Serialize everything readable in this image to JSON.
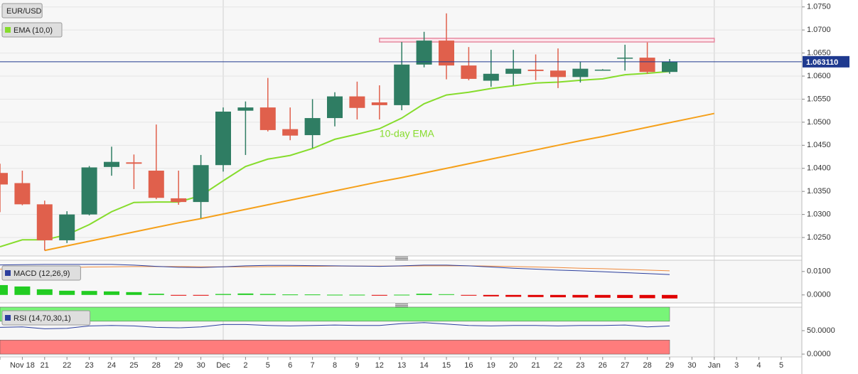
{
  "chart_data": {
    "type": "candlestick",
    "symbol": "EUR/USD",
    "categories": [
      null,
      "Nov 18",
      "21",
      "22",
      "23",
      "24",
      "25",
      "28",
      "29",
      "30",
      "Dec",
      "2",
      "5",
      "6",
      "7",
      "8",
      "9",
      "12",
      "13",
      "14",
      "15",
      "16",
      "19",
      "20",
      "21",
      "22",
      "23",
      "26",
      "27",
      "28",
      "29",
      "30",
      "Jan",
      "3",
      "4",
      "5"
    ],
    "open": [
      1.039,
      1.0368,
      1.0322,
      1.0244,
      1.03,
      1.0403,
      1.0413,
      1.0395,
      1.0335,
      1.0327,
      1.0407,
      1.0525,
      1.0532,
      1.0485,
      1.0472,
      1.0509,
      1.0556,
      1.0543,
      1.0537,
      1.0625,
      1.0677,
      1.0623,
      1.059,
      1.0605,
      1.0614,
      1.0612,
      1.0598,
      1.0614,
      1.0638,
      1.064,
      1.0609,
      null,
      null,
      null,
      null,
      null
    ],
    "high": [
      1.041,
      1.0395,
      1.033,
      1.0307,
      1.0405,
      1.0447,
      1.043,
      1.0495,
      1.0395,
      1.0429,
      1.0532,
      1.0545,
      1.0596,
      1.0532,
      1.055,
      1.0565,
      1.0588,
      1.058,
      1.0674,
      1.0696,
      1.0736,
      1.0663,
      1.0657,
      1.0657,
      1.0647,
      1.066,
      1.0631,
      1.0615,
      1.0668,
      1.0673,
      1.0637,
      null,
      null,
      null,
      null,
      null
    ],
    "low": [
      1.0305,
      1.032,
      1.0222,
      1.0238,
      1.0298,
      1.0384,
      1.0355,
      1.0333,
      1.0321,
      1.0292,
      1.0393,
      1.0429,
      1.048,
      1.0461,
      1.0444,
      1.0491,
      1.0506,
      1.0506,
      1.0526,
      1.0619,
      1.0593,
      1.0591,
      1.0577,
      1.058,
      1.0591,
      1.0574,
      1.0586,
      1.0612,
      1.0612,
      1.0605,
      1.0605,
      null,
      null,
      null,
      null,
      null
    ],
    "close": [
      1.0365,
      1.0322,
      1.0244,
      1.03,
      1.0402,
      1.0414,
      1.041,
      1.0336,
      1.0327,
      1.0407,
      1.0523,
      1.0532,
      1.0483,
      1.0471,
      1.0509,
      1.0556,
      1.0531,
      1.0537,
      1.0625,
      1.0677,
      1.0623,
      1.0594,
      1.0605,
      1.0616,
      1.0611,
      1.0598,
      1.0616,
      1.0614,
      1.064,
      1.0609,
      1.06311,
      null,
      null,
      null,
      null,
      null
    ],
    "up_color": "#2f7d63",
    "down_color": "#e0604c",
    "ylim": [
      1.021,
      1.0765
    ],
    "yticks": [
      {
        "value": 1.075,
        "label": "1.0750"
      },
      {
        "value": 1.07,
        "label": "1.0700"
      },
      {
        "value": 1.065,
        "label": "1.0650"
      },
      {
        "value": 1.06,
        "label": "1.0600"
      },
      {
        "value": 1.055,
        "label": "1.0550"
      },
      {
        "value": 1.05,
        "label": "1.0500"
      },
      {
        "value": 1.045,
        "label": "1.0450"
      },
      {
        "value": 1.04,
        "label": "1.0400"
      },
      {
        "value": 1.035,
        "label": "1.0350"
      },
      {
        "value": 1.03,
        "label": "1.0300"
      },
      {
        "value": 1.025,
        "label": "1.0250"
      }
    ],
    "grid": true,
    "last_price": {
      "value": 1.06311,
      "label": "1.063110",
      "color": "#1f3a8f"
    },
    "ema": {
      "name": "EMA (10,0)",
      "annotation": "10-day EMA",
      "color": "#86dc2c",
      "values": [
        1.023,
        1.0245,
        1.0245,
        1.0256,
        1.0278,
        1.0306,
        1.0326,
        1.0327,
        1.0327,
        1.0341,
        1.0373,
        1.0404,
        1.042,
        1.0428,
        1.0443,
        1.0463,
        1.0474,
        1.0486,
        1.0509,
        1.054,
        1.0559,
        1.0565,
        1.0573,
        1.0579,
        1.0585,
        1.0587,
        1.0591,
        1.0594,
        1.0603,
        1.0606,
        1.061,
        null,
        null,
        null,
        null,
        null
      ]
    },
    "trend_line": {
      "color": "#f5a01a",
      "values": [
        null,
        null,
        1.0222,
        1.0232,
        1.0242,
        1.0252,
        1.0262,
        1.0272,
        1.0282,
        1.0291,
        1.0301,
        1.0311,
        1.0321,
        1.0331,
        1.0341,
        1.0351,
        1.0361,
        1.0371,
        1.038,
        1.039,
        1.04,
        1.041,
        1.042,
        1.043,
        1.044,
        1.045,
        1.046,
        1.0469,
        1.0479,
        1.0489,
        1.0499,
        1.0509,
        1.0519,
        null,
        null,
        null
      ]
    },
    "resistance_zone": {
      "range": [
        1.0674,
        1.0682
      ],
      "color": "#e68aa0"
    },
    "macd": {
      "name": "MACD (12,26,9)",
      "ylim": [
        -0.0034,
        0.0148
      ],
      "yticks": [
        {
          "value": 0.01,
          "label": "0.0100"
        },
        {
          "value": 0,
          "label": "0.0000"
        }
      ],
      "macd_line": {
        "color": "#2c3f9e",
        "values": [
          0.0128,
          0.0129,
          0.013,
          0.013,
          0.013,
          0.013,
          0.0127,
          0.0122,
          0.0118,
          0.0117,
          0.012,
          0.0124,
          0.0126,
          0.0126,
          0.0125,
          0.0124,
          0.0123,
          0.0122,
          0.0124,
          0.0127,
          0.0127,
          0.0124,
          0.0119,
          0.0114,
          0.011,
          0.0106,
          0.0103,
          0.0099,
          0.0095,
          0.0091,
          0.0087,
          null,
          null,
          null,
          null,
          null
        ]
      },
      "signal_line": {
        "color": "#f08a3c",
        "values": [
          0.011,
          0.0112,
          0.0115,
          0.0117,
          0.0119,
          0.012,
          0.0121,
          0.0121,
          0.0121,
          0.012,
          0.012,
          0.012,
          0.0121,
          0.0122,
          0.0122,
          0.0123,
          0.0123,
          0.0123,
          0.0123,
          0.0124,
          0.0124,
          0.0124,
          0.0123,
          0.0121,
          0.0119,
          0.0117,
          0.0114,
          0.0112,
          0.0109,
          0.0106,
          0.0103,
          null,
          null,
          null,
          null,
          null
        ]
      },
      "histogram": {
        "positive_color": "#22cc22",
        "negative_color": "#e00000",
        "values": [
          0.0042,
          0.0036,
          0.0024,
          0.0018,
          0.0017,
          0.0015,
          0.0012,
          0.0005,
          -0.0002,
          -0.0002,
          0.0004,
          0.0006,
          0.0004,
          0.0002,
          0.0002,
          0.0001,
          0.0001,
          -0.0002,
          0.0001,
          0.0005,
          0.0003,
          -0.0002,
          -0.0006,
          -0.0008,
          -0.0009,
          -0.001,
          -0.0011,
          -0.0012,
          -0.0013,
          -0.0014,
          -0.0015,
          null,
          null,
          null,
          null,
          null
        ]
      }
    },
    "rsi": {
      "name": "RSI (14,70,30,1)",
      "ylim": [
        -6,
        100
      ],
      "yticks": [
        {
          "value": 50,
          "label": "50.0000"
        },
        {
          "value": 0,
          "label": "0.0000"
        }
      ],
      "bands": [
        {
          "range": [
            70,
            100
          ],
          "color": "#78f578"
        },
        {
          "range": [
            0,
            30
          ],
          "color": "#ff7c7c"
        }
      ],
      "line": {
        "color": "#2c3f9e",
        "values": [
          57,
          58,
          54,
          55,
          60,
          61,
          60,
          57,
          56,
          58,
          63,
          63,
          61,
          60,
          61,
          62,
          61,
          61,
          65,
          67,
          64,
          61,
          60,
          61,
          61,
          60,
          61,
          61,
          62,
          58,
          60,
          null,
          null,
          null,
          null,
          null
        ]
      }
    }
  }
}
